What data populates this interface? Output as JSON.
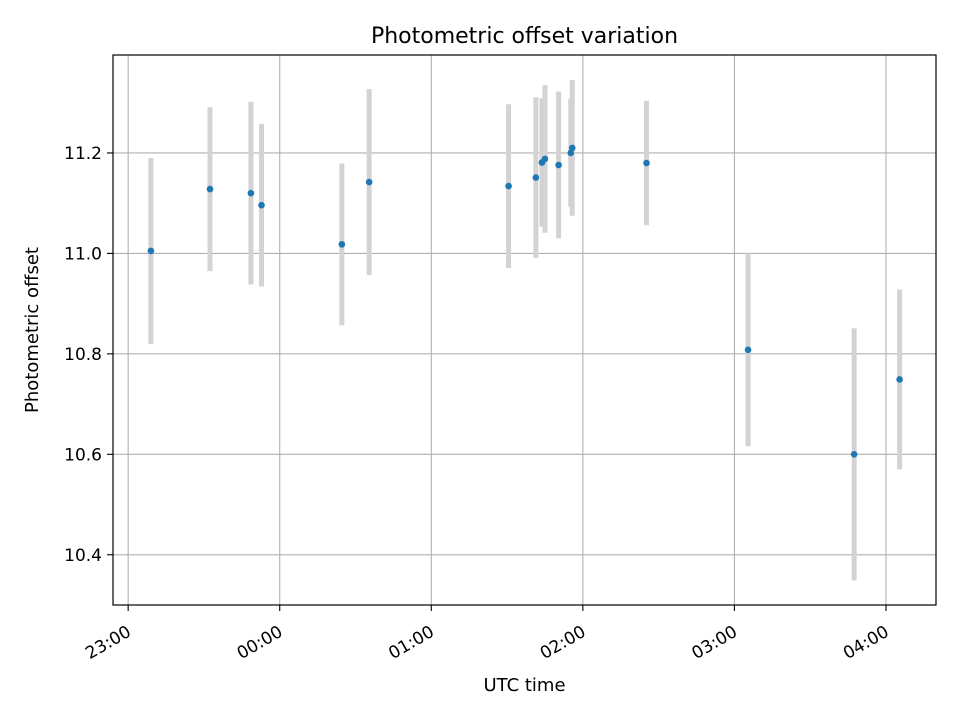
{
  "chart_data": {
    "type": "scatter",
    "title": "Photometric offset variation",
    "xlabel": "UTC time",
    "ylabel": "Photometric offset",
    "x_unit": "UTC time of day (hours); values after 24 are the following day",
    "xlim": [
      22.9,
      4.33
    ],
    "ylim": [
      10.3,
      11.395
    ],
    "x_ticks": [
      {
        "value": 23.0,
        "label": "23:00"
      },
      {
        "value": 24.0,
        "label": "00:00"
      },
      {
        "value": 1.0,
        "label": "01:00"
      },
      {
        "value": 2.0,
        "label": "02:00"
      },
      {
        "value": 3.0,
        "label": "03:00"
      },
      {
        "value": 4.0,
        "label": "04:00"
      }
    ],
    "y_ticks": [
      {
        "value": 10.4,
        "label": "10.4"
      },
      {
        "value": 10.6,
        "label": "10.6"
      },
      {
        "value": 10.8,
        "label": "10.8"
      },
      {
        "value": 11.0,
        "label": "11.0"
      },
      {
        "value": 11.2,
        "label": "11.2"
      }
    ],
    "grid": true,
    "marker_color": "#1f77b4",
    "errorbar_color": "#d3d3d3",
    "points": [
      {
        "x": 23.15,
        "y": 11.005,
        "err": 0.185
      },
      {
        "x": 23.54,
        "y": 11.128,
        "err": 0.163
      },
      {
        "x": 23.81,
        "y": 11.12,
        "err": 0.182
      },
      {
        "x": 23.88,
        "y": 11.096,
        "err": 0.162
      },
      {
        "x": 0.41,
        "y": 11.018,
        "err": 0.161
      },
      {
        "x": 0.59,
        "y": 11.142,
        "err": 0.185
      },
      {
        "x": 1.51,
        "y": 11.134,
        "err": 0.163
      },
      {
        "x": 1.69,
        "y": 11.151,
        "err": 0.16
      },
      {
        "x": 1.73,
        "y": 11.181,
        "err": 0.128
      },
      {
        "x": 1.75,
        "y": 11.188,
        "err": 0.147
      },
      {
        "x": 1.84,
        "y": 11.176,
        "err": 0.146
      },
      {
        "x": 1.92,
        "y": 11.2,
        "err": 0.107
      },
      {
        "x": 1.93,
        "y": 11.21,
        "err": 0.135
      },
      {
        "x": 2.42,
        "y": 11.18,
        "err": 0.124
      },
      {
        "x": 3.09,
        "y": 10.808,
        "err": 0.192
      },
      {
        "x": 3.79,
        "y": 10.6,
        "err": 0.251
      },
      {
        "x": 4.09,
        "y": 10.749,
        "err": 0.179
      }
    ]
  }
}
